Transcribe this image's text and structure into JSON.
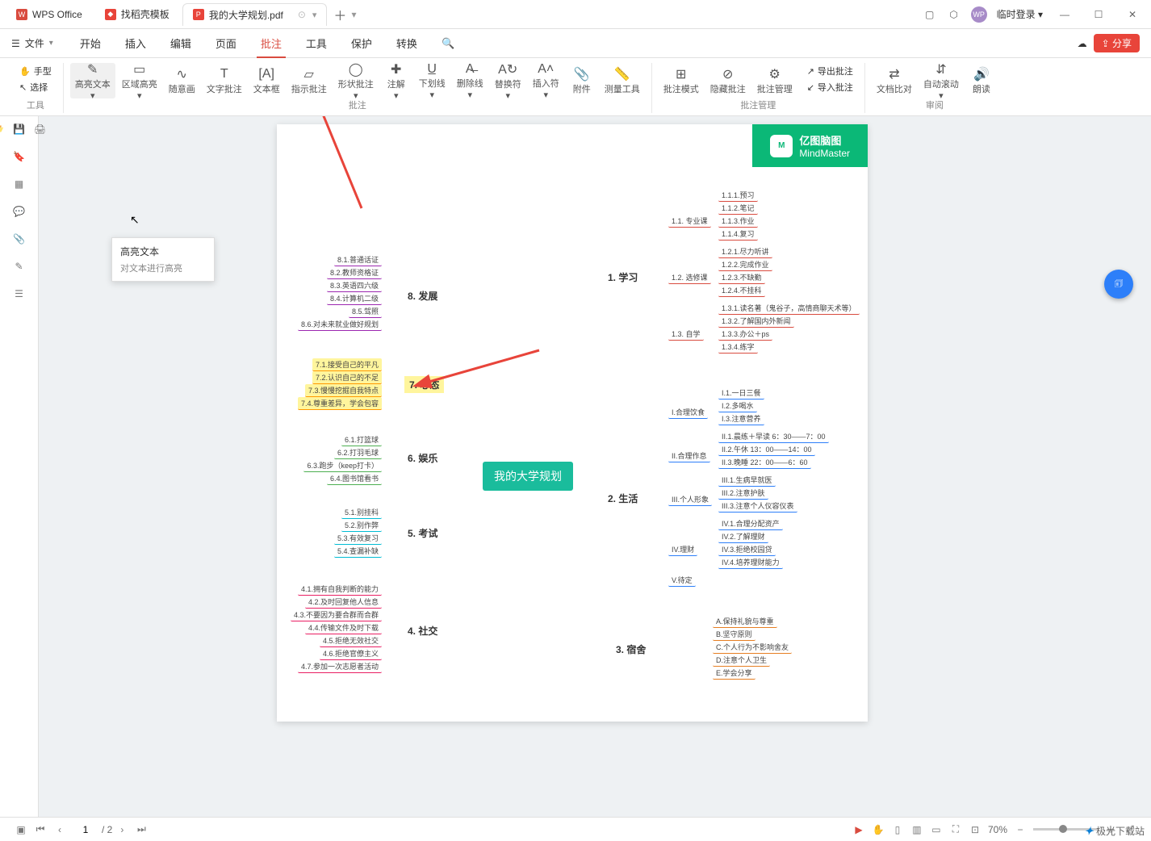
{
  "titlebar": {
    "app_tab": "WPS Office",
    "tab1": "找稻壳模板",
    "tab2": "我的大学规划.pdf",
    "login": "临时登录"
  },
  "menubar": {
    "file": "文件",
    "tabs": [
      "开始",
      "插入",
      "编辑",
      "页面",
      "批注",
      "工具",
      "保护",
      "转换"
    ],
    "active": 4,
    "share": "分享"
  },
  "ribbon": {
    "tools": {
      "hand": "手型",
      "select": "选择",
      "label": "工具"
    },
    "highlight": {
      "text": "高亮文本",
      "area": "区域高亮",
      "free": "随意画"
    },
    "textann": "文字批注",
    "textbox": "文本框",
    "pointer": "指示批注",
    "shape": "形状批注",
    "note": "注解",
    "underline": "下划线",
    "strike": "删除线",
    "replace": "替换符",
    "insert": "插入符",
    "attach": "附件",
    "measure": "测量工具",
    "mode": "批注模式",
    "hide": "隐藏批注",
    "manage": "批注管理",
    "export": "导出批注",
    "import": "导入批注",
    "compare": "文档比对",
    "autoscroll": "自动滚动",
    "read": "朗读",
    "g_annot": "批注",
    "g_mgmt": "批注管理",
    "g_review": "审阅"
  },
  "tooltip": {
    "title": "高亮文本",
    "desc": "对文本进行高亮"
  },
  "mindmap": {
    "logo": {
      "l1": "亿图脑图",
      "l2": "MindMaster"
    },
    "center": "我的大学规划",
    "branches": {
      "b1": {
        "title": "1. 学习",
        "color": "#d94b3f",
        "subs": [
          {
            "t": "1.1. 专业课",
            "items": [
              "1.1.1.预习",
              "1.1.2.笔记",
              "1.1.3.作业",
              "1.1.4.复习"
            ]
          },
          {
            "t": "1.2. 选修课",
            "items": [
              "1.2.1.尽力听讲",
              "1.2.2.完成作业",
              "1.2.3.不缺勤",
              "1.2.4.不挂科"
            ]
          },
          {
            "t": "1.3. 自学",
            "items": [
              "1.3.1.读名著（鬼谷子，高情商聊天术等）",
              "1.3.2.了解国内外新闻",
              "1.3.3.办公＋ps",
              "1.3.4.练字"
            ]
          }
        ]
      },
      "b2": {
        "title": "2. 生活",
        "color": "#2d7ff9",
        "subs": [
          {
            "t": "I.合理饮食",
            "items": [
              "I.1.一日三餐",
              "I.2.多喝水",
              "I.3.注意营养"
            ]
          },
          {
            "t": "II.合理作息",
            "items": [
              "II.1.晨练＋早读  6：30——7：00",
              "II.2.午休  13：00——14：00",
              "II.3.晚睡  22：00——6：60"
            ]
          },
          {
            "t": "III.个人形象",
            "items": [
              "III.1.生病早就医",
              "III.2.注意护肤",
              "III.3.注意个人仪容仪表"
            ]
          },
          {
            "t": "IV.理财",
            "items": [
              "IV.1.合理分配资产",
              "IV.2.了解理财",
              "IV.3.拒绝校园贷",
              "IV.4.培养理财能力"
            ]
          },
          {
            "t": "V.待定",
            "items": []
          }
        ]
      },
      "b3": {
        "title": "3. 宿舍",
        "color": "#e67e22",
        "subs": [
          {
            "t": "",
            "items": [
              "A.保持礼貌与尊重",
              "B.坚守原则",
              "C.个人行为不影响舍友",
              "D.注意个人卫生",
              "E.学会分享"
            ]
          }
        ]
      },
      "b4": {
        "title": "4. 社交",
        "color": "#e91e63",
        "items": [
          "4.1.拥有自我判断的能力",
          "4.2.及时回复他人信息",
          "4.3.不要因为要合群而合群",
          "4.4.传输文件及时下载",
          "4.5.拒绝无效社交",
          "4.6.拒绝官僚主义",
          "4.7.参加一次志愿者活动"
        ]
      },
      "b5": {
        "title": "5. 考试",
        "color": "#00bcd4",
        "items": [
          "5.1.别挂科",
          "5.2.别作弊",
          "5.3.有效复习",
          "5.4.查漏补缺"
        ]
      },
      "b6": {
        "title": "6. 娱乐",
        "color": "#4caf50",
        "items": [
          "6.1.打篮球",
          "6.2.打羽毛球",
          "6.3.跑步（keep打卡）",
          "6.4.图书馆看书"
        ]
      },
      "b7": {
        "title": "7. 心态",
        "color": "#ff9800",
        "hl": true,
        "items": [
          "7.1.接受自己的平凡",
          "7.2.认识自己的不足",
          "7.3.慢慢挖掘自我特点",
          "7.4.尊重差异，学会包容"
        ]
      },
      "b8": {
        "title": "8. 发展",
        "color": "#9c27b0",
        "items": [
          "8.1.普通话证",
          "8.2.教师资格证",
          "8.3.英语四六级",
          "8.4.计算机二级",
          "8.5.驾照",
          "8.6.对未来就业做好规划"
        ]
      }
    }
  },
  "status": {
    "page": "1",
    "total": "/ 2",
    "zoom": "70%"
  },
  "watermark": "极光下载站"
}
